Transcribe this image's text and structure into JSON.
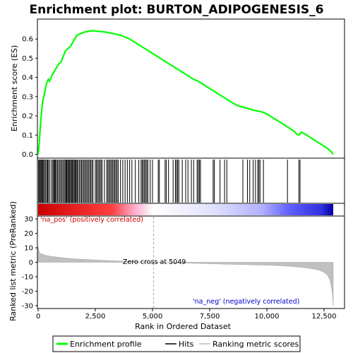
{
  "chart_data": {
    "type": "line",
    "title": "Enrichment plot: BURTON_ADIPOGENESIS_6",
    "colors": {
      "enrichment": "#00ff00",
      "hits": "#000000",
      "metric": "#c0c0c0",
      "pos_label": "#cc0000",
      "neg_label": "#0000cc",
      "zero_line": "#a0a0a0"
    },
    "top_panel": {
      "ylabel": "Enrichment score (ES)",
      "ylim": [
        -0.02,
        0.7
      ],
      "yticks": [
        0.0,
        0.1,
        0.2,
        0.3,
        0.4,
        0.5,
        0.6
      ],
      "ytick_labels": [
        "0.0",
        "0.1",
        "0.2",
        "0.3",
        "0.4",
        "0.5",
        "0.6"
      ],
      "es_profile": {
        "x": [
          0,
          50,
          100,
          150,
          200,
          250,
          300,
          350,
          400,
          450,
          500,
          600,
          700,
          800,
          900,
          1000,
          1100,
          1200,
          1300,
          1400,
          1500,
          1600,
          1700,
          1800,
          1900,
          2000,
          2100,
          2200,
          2300,
          2400,
          2500,
          2600,
          2800,
          3000,
          3200,
          3400,
          3600,
          3800,
          4000,
          4200,
          4400,
          4600,
          4800,
          5000,
          5200,
          5400,
          5600,
          5800,
          6000,
          6200,
          6400,
          6600,
          6800,
          7000,
          7200,
          7400,
          7600,
          7800,
          8000,
          8200,
          8400,
          8600,
          8800,
          9000,
          9200,
          9400,
          9600,
          9800,
          10000,
          10200,
          10400,
          10600,
          10800,
          11000,
          11200,
          11300,
          11400,
          11500,
          11600,
          11800,
          12000,
          12200,
          12400,
          12600,
          12800,
          12900
        ],
        "y": [
          0.0,
          0.06,
          0.15,
          0.22,
          0.28,
          0.3,
          0.33,
          0.36,
          0.38,
          0.39,
          0.38,
          0.41,
          0.43,
          0.45,
          0.47,
          0.48,
          0.51,
          0.54,
          0.55,
          0.56,
          0.58,
          0.6,
          0.62,
          0.625,
          0.63,
          0.635,
          0.638,
          0.64,
          0.642,
          0.643,
          0.642,
          0.64,
          0.638,
          0.635,
          0.63,
          0.625,
          0.62,
          0.61,
          0.6,
          0.585,
          0.57,
          0.555,
          0.54,
          0.525,
          0.51,
          0.495,
          0.48,
          0.465,
          0.45,
          0.435,
          0.42,
          0.405,
          0.39,
          0.38,
          0.365,
          0.35,
          0.335,
          0.32,
          0.305,
          0.29,
          0.275,
          0.26,
          0.25,
          0.245,
          0.238,
          0.23,
          0.225,
          0.22,
          0.21,
          0.195,
          0.18,
          0.165,
          0.15,
          0.135,
          0.12,
          0.105,
          0.1,
          0.115,
          0.11,
          0.095,
          0.08,
          0.065,
          0.05,
          0.035,
          0.015,
          0.0
        ]
      }
    },
    "hits": [
      20,
      60,
      90,
      130,
      160,
      200,
      240,
      280,
      330,
      380,
      420,
      460,
      520,
      600,
      650,
      690,
      720,
      760,
      800,
      850,
      900,
      950,
      1000,
      1050,
      1100,
      1150,
      1200,
      1230,
      1260,
      1300,
      1340,
      1380,
      1420,
      1460,
      1500,
      1540,
      1580,
      1620,
      1660,
      1700,
      1740,
      1800,
      1850,
      1900,
      1950,
      2000,
      2050,
      2100,
      2150,
      2200,
      2250,
      2300,
      2350,
      2400,
      2500,
      2550,
      2600,
      2650,
      2700,
      2750,
      2800,
      2900,
      3000,
      3050,
      3100,
      3150,
      3200,
      3250,
      3300,
      3350,
      3400,
      3450,
      3500,
      3600,
      3700,
      3800,
      3900,
      4000,
      4100,
      4250,
      4400,
      4500,
      4550,
      4600,
      4650,
      4700,
      4750,
      4800,
      4900,
      5000,
      5250,
      5300,
      5550,
      5600,
      5700,
      5900,
      6000,
      6050,
      6100,
      6150,
      6300,
      6450,
      6550,
      6700,
      6800,
      6950,
      7000,
      7050,
      7100,
      7650,
      7700,
      7950,
      8150,
      8250,
      8950,
      9150,
      9250,
      9400,
      9500,
      9600,
      9650,
      9700,
      9850,
      10900,
      11400,
      11450
    ],
    "metric_panel": {
      "ylabel": "Ranked list metric (PreRanked)",
      "ylim": [
        -32,
        32
      ],
      "yticks": [
        30,
        20,
        10,
        0,
        -10,
        -20,
        -30
      ],
      "ytick_labels": [
        "30",
        "20",
        "10",
        "0",
        "-10",
        "-20",
        "-30"
      ],
      "x": [
        0,
        50,
        100,
        200,
        400,
        600,
        1000,
        1500,
        2000,
        3000,
        4000,
        5049,
        6000,
        7000,
        8000,
        9000,
        10000,
        10500,
        11000,
        11500,
        12000,
        12300,
        12500,
        12650,
        12750,
        12850,
        12900
      ],
      "y": [
        11,
        7,
        6,
        5.5,
        4.5,
        4,
        3.2,
        2.5,
        2,
        1.2,
        0.6,
        0,
        -0.4,
        -0.8,
        -1.2,
        -1.6,
        -2,
        -2.3,
        -2.8,
        -3.4,
        -4.5,
        -5.5,
        -7,
        -9,
        -12,
        -20,
        -30
      ]
    },
    "xlabel": "Rank in Ordered Dataset",
    "xlim": [
      0,
      12900
    ],
    "xticks": [
      0,
      2500,
      5000,
      7500,
      10000,
      12500
    ],
    "xtick_labels": [
      "0",
      "2,500",
      "5,000",
      "7,500",
      "10,000",
      "12,500"
    ],
    "zero_cross": 5049,
    "annotations": {
      "pos": "'na_pos' (positively correlated)",
      "neg": "'na_neg' (negatively correlated)",
      "zero": "Zero cross at 5049"
    },
    "legend": {
      "placement": "bottom",
      "entries": [
        "Enrichment profile",
        "Hits",
        "Ranking metric scores"
      ]
    }
  }
}
